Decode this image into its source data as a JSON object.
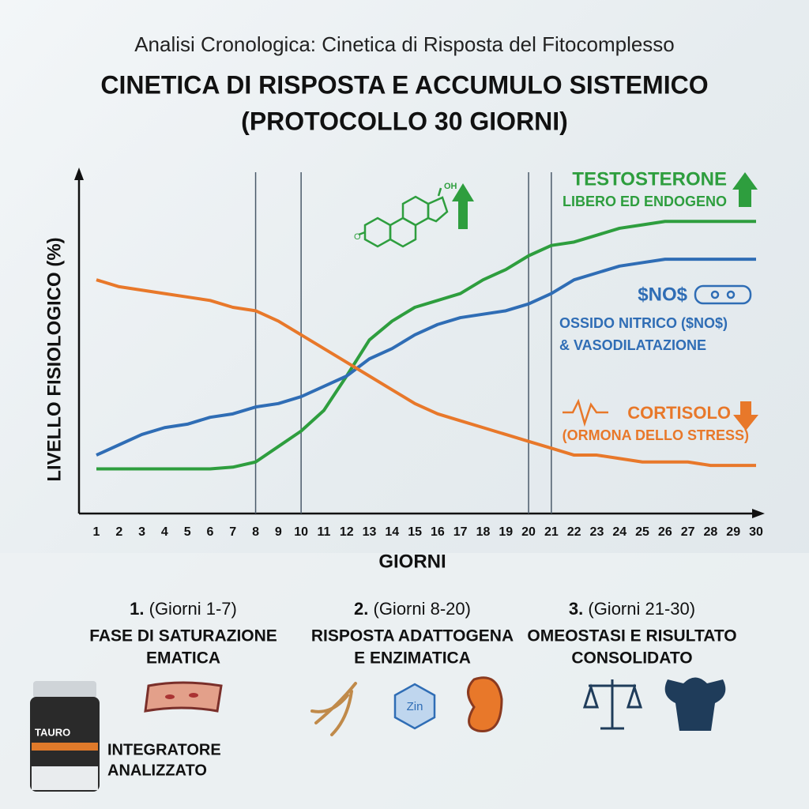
{
  "chart_data": {
    "type": "line",
    "title": "Analisi Cronologica: Cinetica di Risposta del Fitocomplesso",
    "subtitle": [
      "CINETICA DI RISPOSTA E ACCUMULO SISTEMICO",
      "(PROTOCOLLO 30 GIORNI)"
    ],
    "y_label": "LIVELLO FISIOLOGICO (%)",
    "x_label": "GIORNI",
    "x": [
      1,
      2,
      3,
      4,
      5,
      6,
      7,
      8,
      9,
      10,
      11,
      12,
      13,
      14,
      15,
      16,
      17,
      18,
      19,
      20,
      21,
      22,
      23,
      24,
      25,
      26,
      27,
      28,
      29,
      30
    ],
    "xlim": [
      1,
      30
    ],
    "xticks": [
      1,
      2,
      3,
      4,
      5,
      6,
      7,
      8,
      9,
      10,
      11,
      12,
      13,
      14,
      15,
      16,
      17,
      18,
      19,
      20,
      21,
      22,
      23,
      24,
      25,
      26,
      27,
      28,
      29,
      30
    ],
    "ylim": [
      0,
      100
    ],
    "phase_lines": [
      8,
      10,
      20,
      21
    ],
    "series": [
      {
        "name": "TESTOSTERONE",
        "description": [
          "LIBERO ED ENDOGENO"
        ],
        "color": "#2e9e3e",
        "values": [
          13,
          13,
          13,
          13,
          13,
          13,
          13.5,
          15,
          19.5,
          24,
          30,
          40,
          50.5,
          56,
          60,
          62,
          64,
          68,
          71,
          75,
          78,
          79,
          81,
          83,
          84,
          85,
          85,
          85,
          85,
          85
        ]
      },
      {
        "name": "$NO$",
        "description": [
          "OSSIDO NITRICO ($NO$)",
          "& VASODILATAZIONE"
        ],
        "color": "#2f6db5",
        "values": [
          17,
          20,
          23,
          25,
          26,
          28,
          29,
          31,
          32,
          34,
          37,
          40,
          45,
          48,
          52,
          55,
          57,
          58,
          59,
          61,
          64,
          68,
          70,
          72,
          73,
          74,
          74,
          74,
          74,
          74
        ]
      },
      {
        "name": "CORTISOLO",
        "description": [
          "(ORMONA DELLO STRESS)"
        ],
        "color": "#e8782a",
        "values": [
          68,
          66,
          65,
          64,
          63,
          62,
          60,
          59,
          56,
          52,
          48,
          44,
          40,
          36,
          32,
          29,
          27,
          25,
          23,
          21,
          19,
          17,
          17,
          16,
          15,
          15,
          15,
          14,
          14,
          14
        ]
      }
    ]
  },
  "icons": {
    "steroid": [
      "OH",
      "O"
    ],
    "zinc": "Zin"
  },
  "phases": [
    {
      "number": "1.",
      "range": "(Giorni 1-7)",
      "title": [
        "FASE DI SATURAZIONE",
        "EMATICA"
      ]
    },
    {
      "number": "2.",
      "range": "(Giorni 8-20)",
      "title": [
        "RISPOSTA ADATTOGENA",
        "E ENZIMATICA"
      ]
    },
    {
      "number": "3.",
      "range": "(Giorni 21-30)",
      "title": [
        "OMEOSTASI E RISULTATO",
        "CONSOLIDATO"
      ]
    }
  ],
  "product": {
    "brand": "TAURO",
    "label": [
      "INTEGRATORE",
      "ANALIZZATO"
    ]
  }
}
